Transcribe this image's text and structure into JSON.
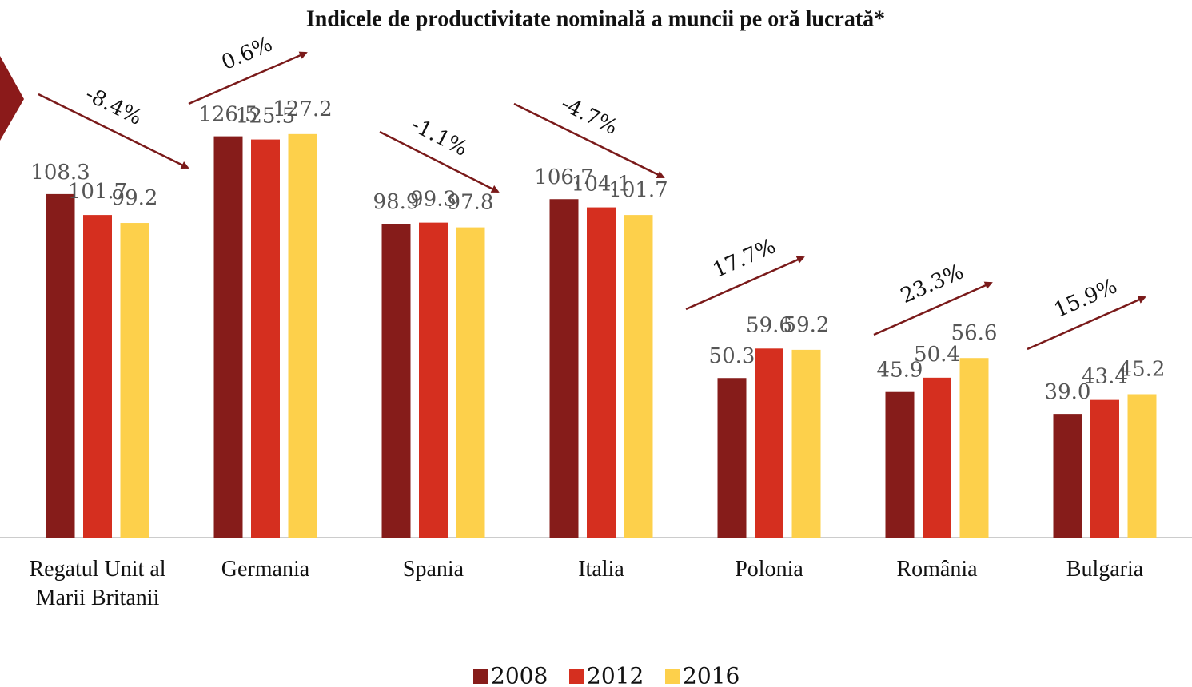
{
  "chart_data": {
    "type": "bar",
    "title": "Indicele de productivitate nominală a muncii pe oră lucrată*",
    "categories": [
      "Regatul Unit al Marii Britanii",
      "Germania",
      "Spania",
      "Italia",
      "Polonia",
      "România",
      "Bulgaria"
    ],
    "series": [
      {
        "name": "2008",
        "color": "#861c1a",
        "values": [
          108.3,
          126.5,
          98.9,
          106.7,
          50.3,
          45.9,
          39.0
        ],
        "value_labels": [
          "108.3",
          "126.5",
          "98.9",
          "106.7",
          "50.3",
          "45.9",
          "39.0"
        ]
      },
      {
        "name": "2012",
        "color": "#d52f1f",
        "values": [
          101.7,
          125.5,
          99.3,
          104.1,
          59.6,
          50.4,
          43.4
        ],
        "value_labels": [
          "101.7",
          "125.5",
          "99.3",
          "104.1",
          "59.6",
          "50.4",
          "43.4"
        ]
      },
      {
        "name": "2016",
        "color": "#fdd04b",
        "values": [
          99.2,
          127.2,
          97.8,
          101.7,
          59.2,
          56.6,
          45.2
        ],
        "value_labels": [
          "99.2",
          "127.2",
          "97.8",
          "101.7",
          "59.2",
          "56.6",
          "45.2"
        ]
      }
    ],
    "annotations": [
      "-8.4%",
      "0.6%",
      "-1.1%",
      "-4.7%",
      "17.7%",
      "23.3%",
      "15.9%"
    ],
    "ylim": [
      0,
      140
    ],
    "legend": "bottom"
  }
}
